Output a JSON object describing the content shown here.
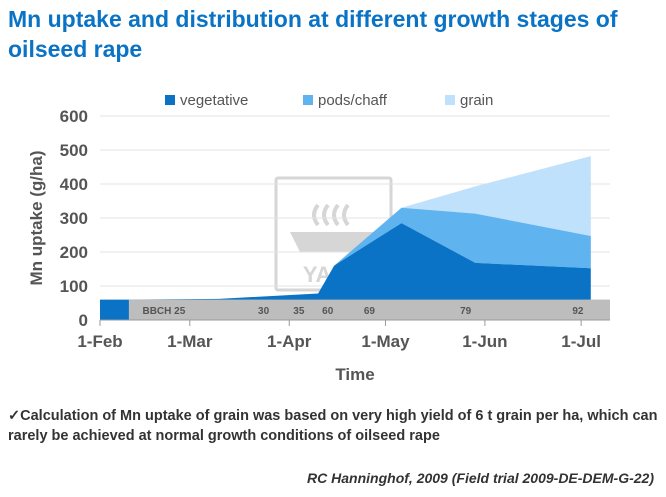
{
  "title": "Mn uptake and distribution at different growth stages of oilseed rape",
  "note": "✓Calculation of Mn uptake of grain was based on very high yield of 6 t grain per ha,  which can rarely be achieved at normal growth conditions of oilseed rape",
  "source": "RC Hanninghof, 2009 (Field trial 2009-DE-DEM-G-22)",
  "watermark": "YARA",
  "colors": {
    "vegetative": "#0a73c6",
    "pods_chaff": "#5fb3ef",
    "grain": "#bfe1fb",
    "bbch_band": "#bdbdbd",
    "watermark": "#d6d6d6"
  },
  "chart_data": {
    "type": "area",
    "stacked": true,
    "xlabel": "Time",
    "ylabel": "Mn uptake (g/ha)",
    "ylim": [
      0,
      600
    ],
    "yticks": [
      0,
      100,
      200,
      300,
      400,
      500,
      600
    ],
    "xlim": [
      "2009-02-01",
      "2009-07-10"
    ],
    "xticks": [
      {
        "date": "2009-02-01",
        "label": "1-Feb"
      },
      {
        "date": "2009-03-01",
        "label": "1-Mar"
      },
      {
        "date": "2009-04-01",
        "label": "1-Apr"
      },
      {
        "date": "2009-05-01",
        "label": "1-May"
      },
      {
        "date": "2009-06-01",
        "label": "1-Jun"
      },
      {
        "date": "2009-07-01",
        "label": "1-Jul"
      }
    ],
    "legend_position": "top",
    "series": [
      {
        "name": "vegetative",
        "points": [
          {
            "x": "2009-02-01",
            "y": 60
          },
          {
            "x": "2009-02-10",
            "y": 60
          },
          {
            "x": "2009-02-10",
            "y": 60
          },
          {
            "x": "2009-03-10",
            "y": 62
          },
          {
            "x": "2009-04-10",
            "y": 78
          },
          {
            "x": "2009-04-15",
            "y": 160
          },
          {
            "x": "2009-05-06",
            "y": 285
          },
          {
            "x": "2009-05-29",
            "y": 168
          },
          {
            "x": "2009-07-04",
            "y": 152
          }
        ]
      },
      {
        "name": "pods/chaff",
        "points": [
          {
            "x": "2009-04-15",
            "y": 0
          },
          {
            "x": "2009-05-06",
            "y": 45
          },
          {
            "x": "2009-05-29",
            "y": 145
          },
          {
            "x": "2009-07-04",
            "y": 95
          }
        ]
      },
      {
        "name": "grain",
        "points": [
          {
            "x": "2009-05-06",
            "y": 0
          },
          {
            "x": "2009-05-29",
            "y": 80
          },
          {
            "x": "2009-07-04",
            "y": 235
          }
        ]
      }
    ],
    "bbch": {
      "label": "BBCH 25",
      "stages": [
        {
          "date": "2009-03-24",
          "label": "30"
        },
        {
          "date": "2009-04-04",
          "label": "35"
        },
        {
          "date": "2009-04-13",
          "label": "60"
        },
        {
          "date": "2009-04-26",
          "label": "69"
        },
        {
          "date": "2009-05-26",
          "label": "79"
        },
        {
          "date": "2009-06-30",
          "label": "92"
        }
      ]
    }
  }
}
